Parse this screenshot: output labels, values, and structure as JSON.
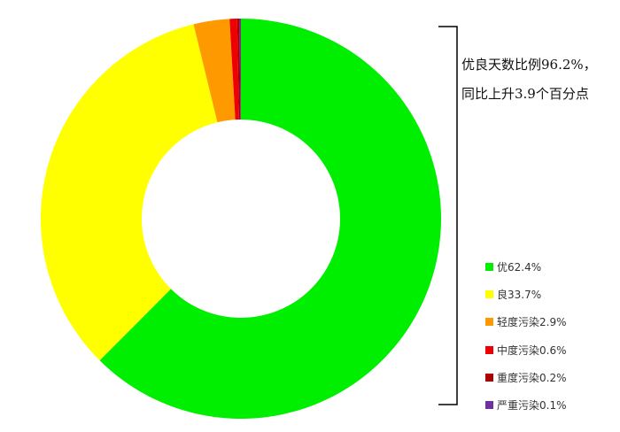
{
  "chart_data": {
    "type": "pie",
    "donut": true,
    "start": "top, clockwise",
    "slices": [
      {
        "name": "优",
        "value": 62.4,
        "label": "优62.4%",
        "color": "#00ee00"
      },
      {
        "name": "良",
        "value": 33.7,
        "label": "良33.7%",
        "color": "#ffff00"
      },
      {
        "name": "轻度污染",
        "value": 2.9,
        "label": "轻度污染2.9%",
        "color": "#ff9900"
      },
      {
        "name": "中度污染",
        "value": 0.6,
        "label": "中度污染0.6%",
        "color": "#ee0000"
      },
      {
        "name": "重度污染",
        "value": 0.2,
        "label": "重度污染0.2%",
        "color": "#aa0000"
      },
      {
        "name": "严重污染",
        "value": 0.1,
        "label": "严重污染0.1%",
        "color": "#7030a0"
      }
    ],
    "annotation": {
      "line1": "优良天数比例96.2%，",
      "line2": "同比上升3.9个百分点"
    },
    "legend": "right"
  }
}
